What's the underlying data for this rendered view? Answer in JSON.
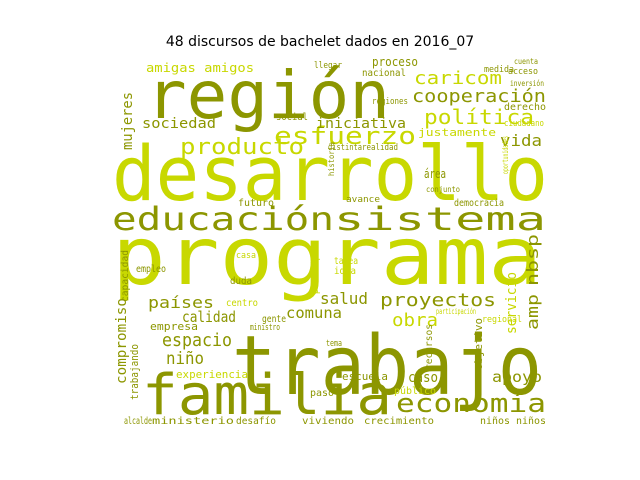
{
  "title": "48 discursos de bachelet dados en 2016_07",
  "colors": {
    "olive": "#8c9600",
    "lime": "#c8d800",
    "background": "#ffffff"
  },
  "words": [
    "trabajo",
    "programa",
    "desarrollo",
    "región",
    "familia",
    "educación",
    "sistema",
    "esfuerzo",
    "producto",
    "economía",
    "proyectos",
    "cooperación",
    "caricom",
    "política",
    "países",
    "mujeres",
    "sociedad",
    "iniciativa",
    "vida",
    "justamente",
    "calidad",
    "espacio",
    "niño",
    "salud",
    "comuna",
    "obra",
    "apoyo",
    "amp",
    "nbsp",
    "servicio",
    "compromiso",
    "trabajando",
    "empresa",
    "experiencia",
    "gente",
    "centro",
    "amigas amigos",
    "proceso",
    "nacional",
    "medida",
    "acceso",
    "derecho",
    "ciudadano",
    "escuela",
    "caso",
    "crecimiento",
    "niños niños",
    "ministerio",
    "desafío",
    "viviendo",
    "alcalde",
    "paso",
    "objetivo",
    "regional",
    "recursos",
    "público",
    "capacidad",
    "futuro",
    "avance",
    "democracia",
    "área",
    "idea",
    "tarea",
    "casa",
    "empleo",
    "duda",
    "participar",
    "regiones",
    "conjunto",
    "realidad",
    "distinta",
    "social",
    "llegar",
    "cuenta",
    "inversión",
    "oportunidades",
    "participación",
    "ministro",
    "tema",
    "historia"
  ]
}
